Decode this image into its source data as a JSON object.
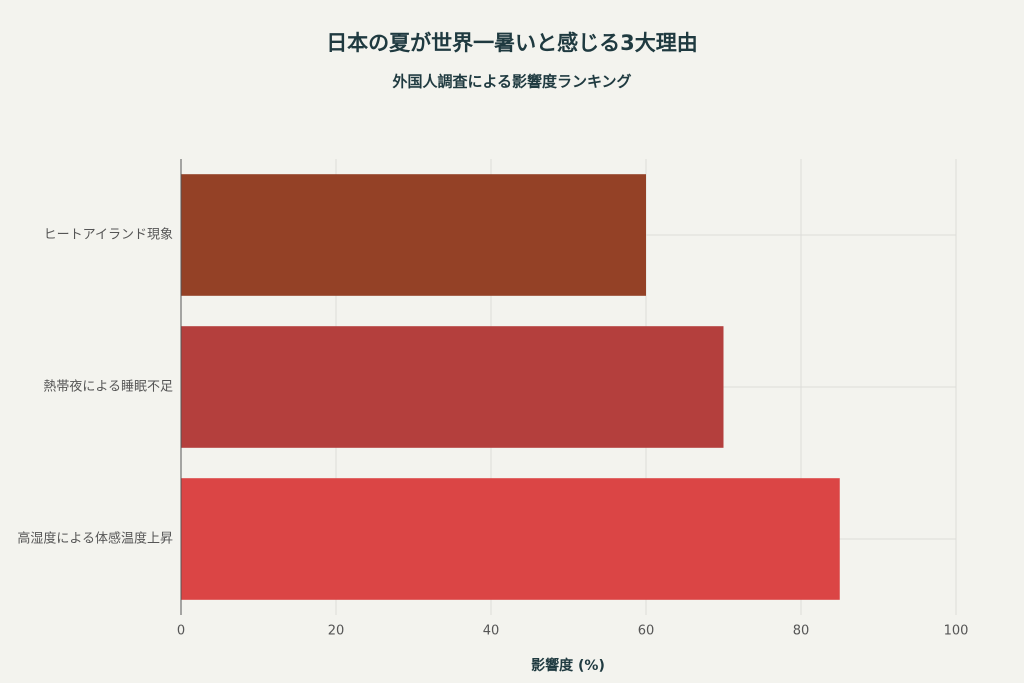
{
  "chart_data": {
    "type": "bar",
    "orientation": "horizontal",
    "title": "日本の夏が世界一暑いと感じる3大理由",
    "subtitle": "外国人調査による影響度ランキング",
    "x_label": "影響度 (%)",
    "categories": [
      "ヒートアイランド現象",
      "熱帯夜による睡眠不足",
      "高湿度による体感温度上昇"
    ],
    "values": [
      60,
      70,
      85
    ],
    "colors": [
      "#944126",
      "#b43f3d",
      "#db4545"
    ],
    "xlim": [
      0,
      100
    ],
    "xticks": [
      0,
      20,
      40,
      60,
      80,
      100
    ],
    "grid": true
  }
}
